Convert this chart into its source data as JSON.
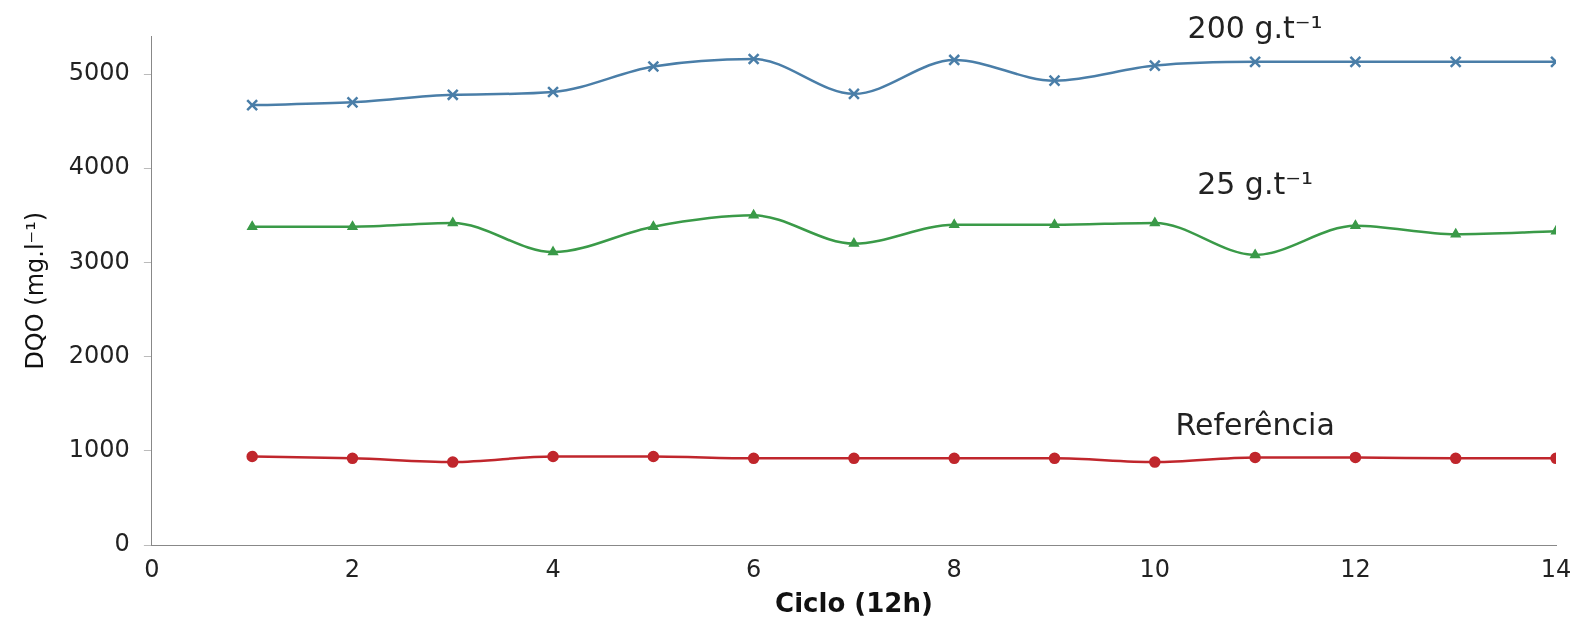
{
  "chart_data": {
    "type": "line",
    "xlabel": "Ciclo (12h)",
    "ylabel": "DQO (mg.l⁻¹)",
    "x": [
      1,
      2,
      3,
      4,
      5,
      6,
      7,
      8,
      9,
      10,
      11,
      12,
      13,
      14
    ],
    "series": [
      {
        "name": "200 g.t⁻¹",
        "color": "#4a7ea8",
        "marker": "cross",
        "values": [
          4670,
          4700,
          4780,
          4810,
          5080,
          5160,
          4790,
          5150,
          4930,
          5090,
          5130,
          5130,
          5130,
          5130
        ]
      },
      {
        "name": "25 g.t⁻¹",
        "color": "#3a9a48",
        "marker": "triangle",
        "values": [
          3380,
          3380,
          3420,
          3110,
          3380,
          3500,
          3200,
          3400,
          3400,
          3420,
          3080,
          3390,
          3300,
          3330
        ]
      },
      {
        "name": "Referência",
        "color": "#c0262c",
        "marker": "circle",
        "values": [
          940,
          920,
          880,
          940,
          940,
          920,
          920,
          920,
          920,
          880,
          930,
          930,
          920,
          920
        ]
      }
    ],
    "xlim": [
      0,
      14
    ],
    "xticks": [
      0,
      2,
      4,
      6,
      8,
      10,
      12,
      14
    ],
    "ylim": [
      0,
      5400
    ],
    "yticks": [
      0,
      1000,
      2000,
      3000,
      4000,
      5000
    ],
    "grid": false,
    "legend": false
  }
}
